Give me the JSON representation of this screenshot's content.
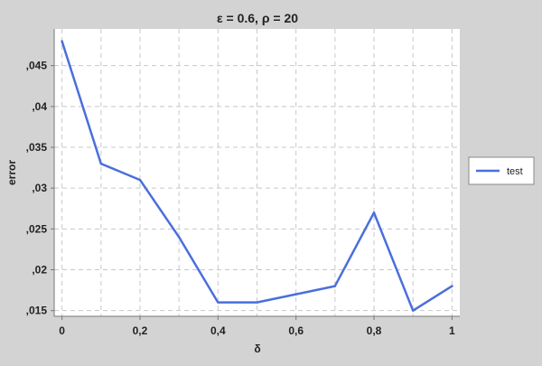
{
  "chart_data": {
    "type": "line",
    "title": "ε = 0.6, ρ = 20",
    "xlabel": "δ",
    "ylabel": "error",
    "xlim": [
      -0.02,
      1.02
    ],
    "ylim": [
      0.0143,
      0.0495
    ],
    "x_ticks": [
      {
        "value": 0,
        "label": "0"
      },
      {
        "value": 0.2,
        "label": "0,2"
      },
      {
        "value": 0.4,
        "label": "0,4"
      },
      {
        "value": 0.6,
        "label": "0,6"
      },
      {
        "value": 0.8,
        "label": "0,8"
      },
      {
        "value": 1.0,
        "label": "1"
      }
    ],
    "y_ticks": [
      {
        "value": 0.015,
        "label": ",015"
      },
      {
        "value": 0.02,
        "label": ",02"
      },
      {
        "value": 0.025,
        "label": ",025"
      },
      {
        "value": 0.03,
        "label": ",03"
      },
      {
        "value": 0.035,
        "label": ",035"
      },
      {
        "value": 0.04,
        "label": ",04"
      },
      {
        "value": 0.045,
        "label": ",045"
      }
    ],
    "x_grid": [
      0,
      0.1,
      0.2,
      0.3,
      0.4,
      0.5,
      0.6,
      0.7,
      0.8,
      0.9,
      1.0
    ],
    "grid": true,
    "legend": "right",
    "series": [
      {
        "name": "test",
        "color": "#4a6fdc",
        "x": [
          0,
          0.1,
          0.2,
          0.3,
          0.4,
          0.5,
          0.6,
          0.7,
          0.8,
          0.9,
          1.0
        ],
        "y": [
          0.048,
          0.033,
          0.031,
          0.024,
          0.016,
          0.016,
          0.017,
          0.018,
          0.027,
          0.015,
          0.018
        ]
      }
    ]
  }
}
